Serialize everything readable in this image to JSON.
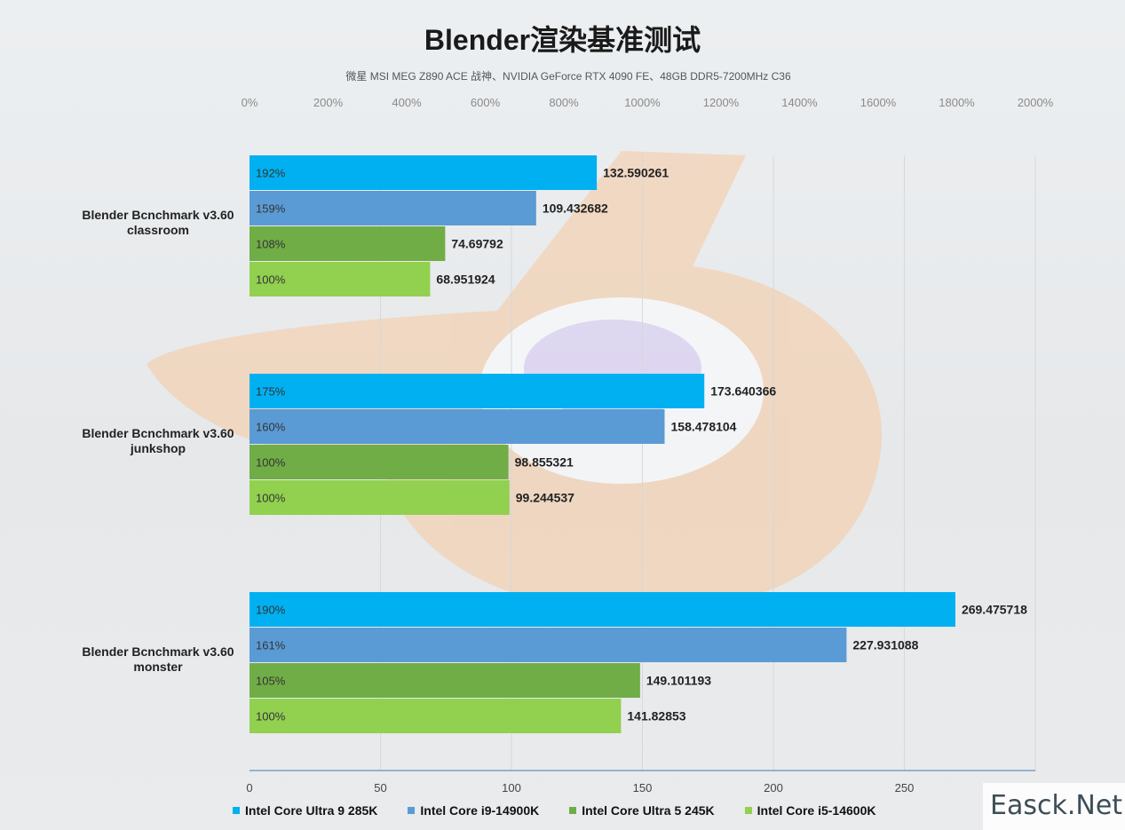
{
  "title": "Blender渲染基准测试",
  "subtitle": "微星 MSI MEG Z890 ACE 战神、NVIDIA GeForce RTX 4090 FE、48GB DDR5-7200MHz  C36",
  "watermark": "Easck.Net",
  "chart_data": {
    "type": "bar",
    "orientation": "horizontal",
    "categories": [
      "Blender Bcnchmark v3.60\nclassroom",
      "Blender Bcnchmark v3.60\njunkshop",
      "Blender Bcnchmark v3.60\nmonster"
    ],
    "series": [
      {
        "name": "Intel Core Ultra 9 285K",
        "color": "#00b0f0",
        "values": [
          132.590261,
          173.640366,
          269.475718
        ],
        "value_labels": [
          "132.590261",
          "173.640366",
          "269.475718"
        ],
        "percent_labels": [
          "192%",
          "175%",
          "190%"
        ]
      },
      {
        "name": "Intel Core i9-14900K",
        "color": "#5b9bd5",
        "values": [
          109.432682,
          158.478104,
          227.931088
        ],
        "value_labels": [
          "109.432682",
          "158.478104",
          "227.931088"
        ],
        "percent_labels": [
          "159%",
          "160%",
          "161%"
        ]
      },
      {
        "name": "Intel Core Ultra 5 245K",
        "color": "#70ad47",
        "values": [
          74.69792,
          98.855321,
          149.101193
        ],
        "value_labels": [
          "74.69792",
          "98.855321",
          "149.101193"
        ],
        "percent_labels": [
          "108%",
          "100%",
          "105%"
        ]
      },
      {
        "name": "Intel Core i5-14600K",
        "color": "#92d050",
        "values": [
          68.951924,
          99.244537,
          141.82853
        ],
        "value_labels": [
          "68.951924",
          "99.244537",
          "141.82853"
        ],
        "percent_labels": [
          "100%",
          "100%",
          "100%"
        ]
      }
    ],
    "x_axis": {
      "ticks": [
        "0",
        "50",
        "100",
        "150",
        "200",
        "250"
      ],
      "range": [
        0,
        300
      ]
    },
    "secondary_x_axis": {
      "ticks": [
        "0%",
        "200%",
        "400%",
        "600%",
        "800%",
        "1000%",
        "1200%",
        "1400%",
        "1600%",
        "1800%",
        "2000%"
      ],
      "range": [
        0,
        2000
      ]
    },
    "grid": true,
    "legend": "bottom"
  }
}
